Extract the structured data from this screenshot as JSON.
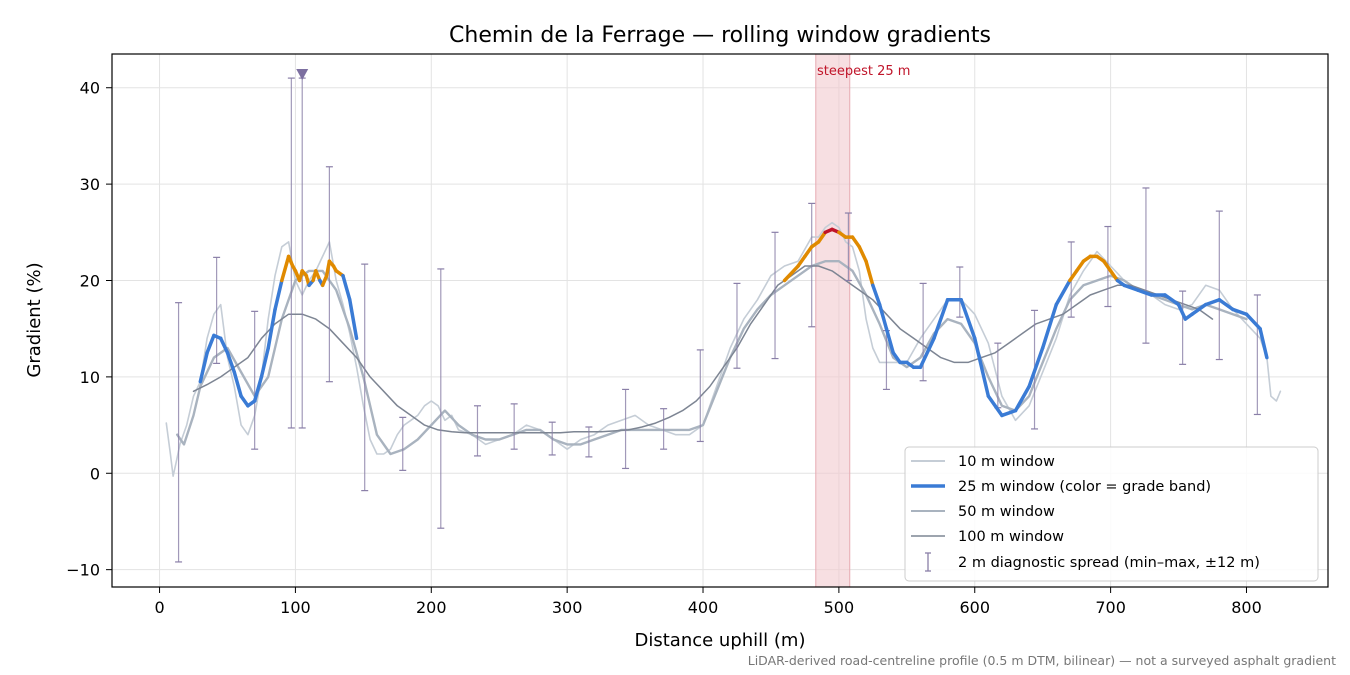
{
  "chart_data": {
    "type": "line",
    "title": "Chemin de la Ferrage — rolling window gradients",
    "xlabel": "Distance uphill (m)",
    "ylabel": "Gradient (%)",
    "xlim": [
      -35,
      860
    ],
    "ylim": [
      -11.8,
      43.5
    ],
    "xticks": [
      0,
      100,
      200,
      300,
      400,
      500,
      600,
      700,
      800
    ],
    "yticks": [
      -10,
      0,
      10,
      20,
      30,
      40
    ],
    "grid": true,
    "legend_position": "lower-right",
    "footnote": "LiDAR-derived road-centreline profile (0.5 m DTM, bilinear) — not a surveyed asphalt gradient",
    "annotation": {
      "text": "steepest 25 m",
      "x_range": [
        483,
        508
      ]
    },
    "grade_band_colors": {
      "below_20": "#3a7bd5",
      "20_to_25": "#e08a00",
      "above_25": "#c0152a"
    },
    "series": [
      {
        "name": "10 m window",
        "color": "#c5cdd6",
        "x": [
          5,
          8,
          10,
          12,
          15,
          20,
          25,
          30,
          35,
          40,
          45,
          50,
          55,
          60,
          65,
          70,
          75,
          80,
          85,
          90,
          95,
          100,
          105,
          110,
          115,
          120,
          125,
          130,
          135,
          140,
          145,
          150,
          155,
          160,
          165,
          170,
          175,
          180,
          185,
          190,
          195,
          200,
          205,
          210,
          215,
          220,
          230,
          240,
          250,
          260,
          270,
          280,
          290,
          300,
          310,
          320,
          330,
          340,
          350,
          360,
          370,
          380,
          390,
          400,
          410,
          420,
          430,
          440,
          450,
          460,
          470,
          480,
          485,
          490,
          495,
          500,
          505,
          510,
          515,
          520,
          525,
          530,
          540,
          550,
          560,
          570,
          580,
          590,
          600,
          610,
          620,
          630,
          640,
          650,
          660,
          670,
          680,
          690,
          700,
          710,
          720,
          730,
          740,
          750,
          760,
          770,
          780,
          790,
          800,
          810,
          815,
          818,
          822,
          825
        ],
        "values": [
          5.2,
          2.0,
          -0.3,
          1.0,
          3.0,
          5.0,
          8.0,
          9.5,
          14.0,
          16.5,
          17.5,
          12.0,
          9.0,
          5.0,
          4.0,
          6.0,
          10.0,
          16.0,
          20.5,
          23.5,
          24.0,
          20.0,
          18.5,
          20.0,
          21.0,
          22.5,
          24.0,
          20.0,
          17.5,
          14.5,
          11.0,
          7.0,
          3.5,
          2.0,
          2.0,
          2.5,
          4.0,
          5.0,
          5.5,
          6.0,
          7.0,
          7.5,
          7.0,
          5.5,
          6.0,
          4.5,
          4.0,
          3.0,
          3.5,
          4.0,
          5.0,
          4.5,
          3.5,
          2.5,
          3.5,
          4.0,
          5.0,
          5.5,
          6.0,
          5.0,
          4.5,
          4.0,
          4.0,
          5.0,
          9.0,
          13.0,
          16.0,
          18.0,
          20.5,
          21.5,
          22.0,
          24.5,
          24.5,
          25.5,
          26.0,
          25.5,
          24.0,
          23.5,
          21.0,
          16.0,
          13.0,
          11.5,
          11.5,
          11.5,
          14.0,
          16.0,
          18.0,
          18.0,
          16.5,
          13.5,
          8.0,
          5.5,
          7.0,
          10.5,
          14.0,
          18.5,
          21.0,
          23.0,
          21.5,
          20.0,
          19.0,
          18.5,
          17.5,
          17.0,
          17.5,
          19.5,
          19.0,
          17.0,
          15.5,
          14.0,
          12.0,
          8.0,
          7.5,
          8.5
        ]
      },
      {
        "name": "25 m window (color = grade band)",
        "color": "#3a7bd5",
        "x": [
          30,
          35,
          40,
          45,
          50,
          55,
          60,
          65,
          70,
          75,
          80,
          85,
          90,
          95,
          98,
          100,
          103,
          105,
          108,
          110,
          113,
          115,
          118,
          120,
          123,
          125,
          128,
          130,
          135,
          140,
          145,
          460,
          470,
          475,
          480,
          485,
          490,
          495,
          500,
          505,
          510,
          515,
          520,
          525,
          530,
          535,
          540,
          545,
          550,
          555,
          560,
          570,
          580,
          590,
          600,
          610,
          620,
          630,
          640,
          650,
          660,
          670,
          675,
          680,
          685,
          690,
          695,
          700,
          705,
          710,
          720,
          730,
          740,
          750,
          755,
          760,
          770,
          780,
          790,
          800,
          810,
          815
        ],
        "values": [
          9.5,
          12.5,
          14.3,
          14.0,
          12.5,
          10.5,
          8.0,
          7.0,
          7.5,
          10.0,
          13.0,
          17.0,
          20.0,
          22.5,
          21.5,
          21.0,
          20.0,
          21.0,
          20.5,
          19.5,
          20.0,
          21.0,
          20.0,
          19.5,
          20.5,
          22.0,
          21.5,
          21.0,
          20.5,
          18.0,
          14.0,
          20.0,
          21.5,
          22.5,
          23.5,
          24.0,
          25.0,
          25.3,
          25.0,
          24.5,
          24.5,
          23.5,
          22.0,
          19.5,
          17.5,
          15.0,
          12.5,
          11.5,
          11.5,
          11.0,
          11.0,
          14.0,
          18.0,
          18.0,
          14.0,
          8.0,
          6.0,
          6.5,
          9.0,
          13.0,
          17.5,
          20.0,
          21.0,
          22.0,
          22.5,
          22.5,
          22.0,
          21.0,
          20.0,
          19.5,
          19.0,
          18.5,
          18.5,
          17.5,
          16.0,
          16.5,
          17.5,
          18.0,
          17.0,
          16.5,
          15.0,
          12.0
        ]
      },
      {
        "name": "50 m window",
        "color": "#a9b3bf",
        "x": [
          13,
          18,
          25,
          30,
          40,
          50,
          60,
          70,
          80,
          90,
          100,
          110,
          120,
          130,
          140,
          150,
          160,
          170,
          180,
          190,
          200,
          210,
          220,
          230,
          240,
          250,
          260,
          270,
          280,
          290,
          300,
          310,
          320,
          330,
          340,
          350,
          360,
          370,
          380,
          390,
          400,
          410,
          420,
          430,
          440,
          450,
          460,
          470,
          480,
          490,
          500,
          510,
          520,
          530,
          540,
          550,
          560,
          570,
          580,
          590,
          600,
          610,
          620,
          630,
          640,
          650,
          660,
          670,
          680,
          690,
          700,
          710,
          720,
          730,
          740,
          750,
          760,
          770,
          780,
          790,
          800
        ],
        "values": [
          4.0,
          3.0,
          6.0,
          9.0,
          12.0,
          13.0,
          10.5,
          8.0,
          10.0,
          16.0,
          20.0,
          21.0,
          21.0,
          19.0,
          15.0,
          10.0,
          4.0,
          2.0,
          2.5,
          3.5,
          5.0,
          6.5,
          5.0,
          4.0,
          3.5,
          3.5,
          4.0,
          4.5,
          4.5,
          3.5,
          3.0,
          3.0,
          3.5,
          4.0,
          4.5,
          4.5,
          4.5,
          4.5,
          4.5,
          4.5,
          5.0,
          8.5,
          12.0,
          15.0,
          17.0,
          18.5,
          19.5,
          20.5,
          21.5,
          22.0,
          22.0,
          21.0,
          18.5,
          15.5,
          12.0,
          11.0,
          12.0,
          14.5,
          16.0,
          15.5,
          13.5,
          10.0,
          7.0,
          6.5,
          8.0,
          11.5,
          15.0,
          18.0,
          19.5,
          20.0,
          20.5,
          20.0,
          19.0,
          18.5,
          18.0,
          17.5,
          17.0,
          17.5,
          17.0,
          16.5,
          16.0
        ]
      },
      {
        "name": "100 m window",
        "color": "#7d8593",
        "x": [
          25,
          35,
          45,
          55,
          65,
          75,
          85,
          95,
          105,
          115,
          125,
          135,
          145,
          155,
          165,
          175,
          185,
          195,
          205,
          215,
          225,
          235,
          245,
          255,
          265,
          275,
          285,
          295,
          305,
          315,
          325,
          335,
          345,
          355,
          365,
          375,
          385,
          395,
          405,
          415,
          425,
          435,
          445,
          455,
          465,
          475,
          485,
          495,
          505,
          515,
          525,
          535,
          545,
          555,
          565,
          575,
          585,
          595,
          605,
          615,
          625,
          635,
          645,
          655,
          665,
          675,
          685,
          695,
          705,
          715,
          725,
          735,
          745,
          755,
          765,
          775
        ],
        "values": [
          8.5,
          9.2,
          10.0,
          11.0,
          12.0,
          14.0,
          15.5,
          16.5,
          16.5,
          16.0,
          15.0,
          13.5,
          12.0,
          10.0,
          8.5,
          7.0,
          6.0,
          5.0,
          4.5,
          4.3,
          4.2,
          4.2,
          4.2,
          4.2,
          4.2,
          4.2,
          4.2,
          4.2,
          4.3,
          4.3,
          4.3,
          4.4,
          4.5,
          4.8,
          5.2,
          5.8,
          6.5,
          7.5,
          9.0,
          11.0,
          13.0,
          15.5,
          17.5,
          19.5,
          20.5,
          21.5,
          21.5,
          21.0,
          20.0,
          19.0,
          18.0,
          16.5,
          15.0,
          14.0,
          13.0,
          12.0,
          11.5,
          11.5,
          12.0,
          12.5,
          13.5,
          14.5,
          15.5,
          16.0,
          16.5,
          17.5,
          18.5,
          19.0,
          19.5,
          19.5,
          19.0,
          18.5,
          18.0,
          17.5,
          17.0,
          16.0
        ]
      },
      {
        "name": "2 m diagnostic spread (min–max, ±12 m)",
        "type": "errorbar",
        "color": "#8a7fa8",
        "points": [
          {
            "x": 14,
            "min": -9.2,
            "max": 17.7
          },
          {
            "x": 42,
            "min": 11.4,
            "max": 22.4
          },
          {
            "x": 70,
            "min": 2.5,
            "max": 16.8
          },
          {
            "x": 97,
            "min": 4.7,
            "max": 41.0
          },
          {
            "x": 105,
            "min": 4.7,
            "max": 41.0
          },
          {
            "x": 125,
            "min": 9.5,
            "max": 31.8
          },
          {
            "x": 151,
            "min": -1.8,
            "max": 21.7
          },
          {
            "x": 179,
            "min": 0.3,
            "max": 5.8
          },
          {
            "x": 207,
            "min": -5.7,
            "max": 21.2
          },
          {
            "x": 234,
            "min": 1.8,
            "max": 7.0
          },
          {
            "x": 261,
            "min": 2.5,
            "max": 7.2
          },
          {
            "x": 289,
            "min": 1.9,
            "max": 5.3
          },
          {
            "x": 316,
            "min": 1.7,
            "max": 4.8
          },
          {
            "x": 343,
            "min": 0.5,
            "max": 8.7
          },
          {
            "x": 371,
            "min": 2.5,
            "max": 6.7
          },
          {
            "x": 398,
            "min": 3.3,
            "max": 12.8
          },
          {
            "x": 425,
            "min": 10.9,
            "max": 19.7
          },
          {
            "x": 453,
            "min": 11.9,
            "max": 25.0
          },
          {
            "x": 480,
            "min": 15.2,
            "max": 28.0
          },
          {
            "x": 507,
            "min": 20.0,
            "max": 27.0
          },
          {
            "x": 535,
            "min": 8.7,
            "max": 14.8
          },
          {
            "x": 562,
            "min": 9.6,
            "max": 19.7
          },
          {
            "x": 589,
            "min": 16.2,
            "max": 21.4
          },
          {
            "x": 617,
            "min": 6.8,
            "max": 13.5
          },
          {
            "x": 644,
            "min": 4.6,
            "max": 16.9
          },
          {
            "x": 671,
            "min": 16.2,
            "max": 24.0
          },
          {
            "x": 698,
            "min": 17.3,
            "max": 25.6
          },
          {
            "x": 726,
            "min": 13.5,
            "max": 29.6
          },
          {
            "x": 753,
            "min": 11.3,
            "max": 18.9
          },
          {
            "x": 780,
            "min": 11.8,
            "max": 27.2
          },
          {
            "x": 808,
            "min": 6.1,
            "max": 18.5
          }
        ],
        "clipped_marker": {
          "x": 105,
          "label": "clipped"
        }
      }
    ]
  }
}
